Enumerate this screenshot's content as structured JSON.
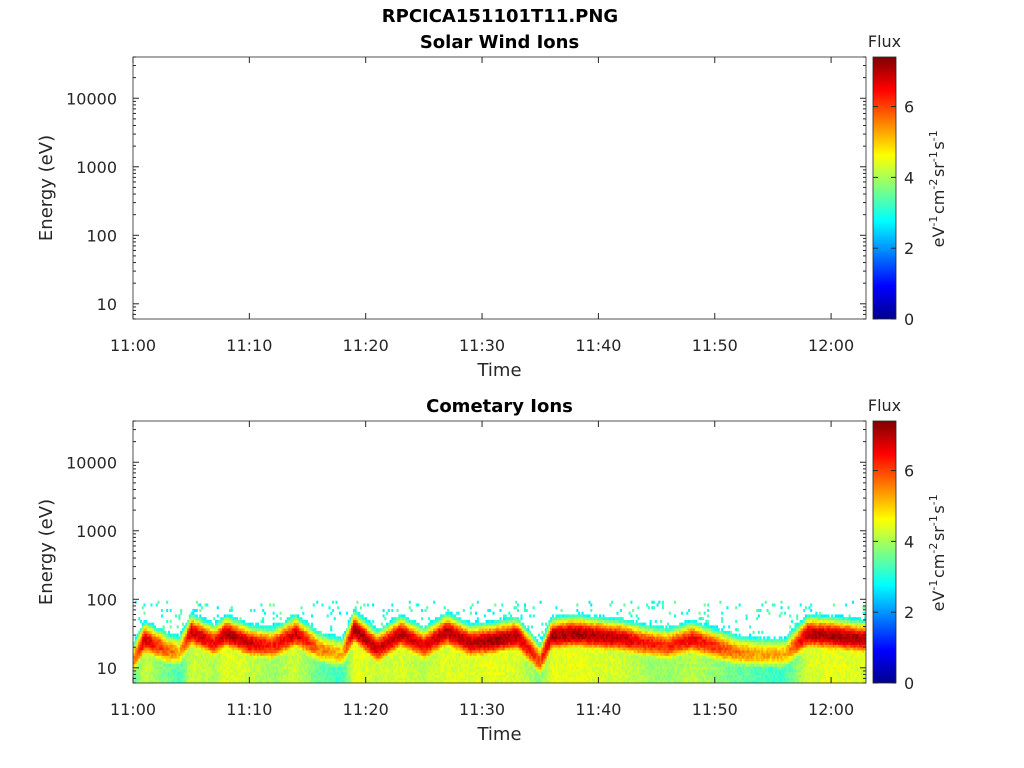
{
  "figure": {
    "title": "RPCICA151101T11.PNG"
  },
  "colors": {
    "axes": "#262626",
    "background": "#ffffff",
    "colormap": [
      "#00008f",
      "#0000ff",
      "#0080ff",
      "#00ffff",
      "#80ff80",
      "#ffff00",
      "#ff8000",
      "#ff0000",
      "#800000"
    ]
  },
  "chart_data": [
    {
      "type": "heatmap",
      "title": "Solar Wind Ions",
      "xlabel": "Time",
      "ylabel": "Energy (eV)",
      "y_scale": "log",
      "xlim": [
        "11:00",
        "12:03"
      ],
      "ylim": [
        6,
        40000
      ],
      "xticks": [
        "11:00",
        "11:10",
        "11:20",
        "11:30",
        "11:40",
        "11:50",
        "12:00"
      ],
      "yticks": [
        "10",
        "100",
        "1000",
        "10000"
      ],
      "grid": false,
      "colorbar": {
        "label": "Flux",
        "unit": "eV-1cm-2sr-1s-1",
        "range": [
          0,
          7.4
        ],
        "ticks": [
          "0",
          "2",
          "4",
          "6"
        ]
      },
      "band": []
    },
    {
      "type": "heatmap",
      "title": "Cometary Ions",
      "xlabel": "Time",
      "ylabel": "Energy (eV)",
      "y_scale": "log",
      "xlim": [
        "11:00",
        "12:03"
      ],
      "ylim": [
        6,
        40000
      ],
      "xticks": [
        "11:00",
        "11:10",
        "11:20",
        "11:30",
        "11:40",
        "11:50",
        "12:00"
      ],
      "yticks": [
        "10",
        "100",
        "1000",
        "10000"
      ],
      "grid": false,
      "colorbar": {
        "label": "Flux",
        "unit": "eV-1cm-2sr-1s-1",
        "range": [
          0,
          7.4
        ],
        "ticks": [
          "0",
          "2",
          "4",
          "6"
        ]
      },
      "band": [
        {
          "time": "11:00",
          "peak_eV": 12,
          "max_flux": 5.5
        },
        {
          "time": "11:01",
          "peak_eV": 25,
          "max_flux": 6.8
        },
        {
          "time": "11:03",
          "peak_eV": 17,
          "max_flux": 5.8
        },
        {
          "time": "11:04",
          "peak_eV": 16,
          "max_flux": 5.2
        },
        {
          "time": "11:05",
          "peak_eV": 32,
          "max_flux": 6.9
        },
        {
          "time": "11:07",
          "peak_eV": 22,
          "max_flux": 6.5
        },
        {
          "time": "11:08",
          "peak_eV": 30,
          "max_flux": 7.1
        },
        {
          "time": "11:10",
          "peak_eV": 22,
          "max_flux": 6.8
        },
        {
          "time": "11:12",
          "peak_eV": 20,
          "max_flux": 6.3
        },
        {
          "time": "11:14",
          "peak_eV": 30,
          "max_flux": 6.9
        },
        {
          "time": "11:16",
          "peak_eV": 18,
          "max_flux": 5.6
        },
        {
          "time": "11:18",
          "peak_eV": 15,
          "max_flux": 5.2
        },
        {
          "time": "11:19",
          "peak_eV": 35,
          "max_flux": 7.2
        },
        {
          "time": "11:21",
          "peak_eV": 18,
          "max_flux": 6.8
        },
        {
          "time": "11:23",
          "peak_eV": 30,
          "max_flux": 7.0
        },
        {
          "time": "11:25",
          "peak_eV": 20,
          "max_flux": 6.6
        },
        {
          "time": "11:27",
          "peak_eV": 32,
          "max_flux": 7.1
        },
        {
          "time": "11:29",
          "peak_eV": 22,
          "max_flux": 7.0
        },
        {
          "time": "11:31",
          "peak_eV": 24,
          "max_flux": 7.2
        },
        {
          "time": "11:33",
          "peak_eV": 28,
          "max_flux": 7.0
        },
        {
          "time": "11:35",
          "peak_eV": 12,
          "max_flux": 6.0
        },
        {
          "time": "11:36",
          "peak_eV": 28,
          "max_flux": 7.1
        },
        {
          "time": "11:38",
          "peak_eV": 30,
          "max_flux": 7.2
        },
        {
          "time": "11:40",
          "peak_eV": 28,
          "max_flux": 7.0
        },
        {
          "time": "11:42",
          "peak_eV": 26,
          "max_flux": 6.9
        },
        {
          "time": "11:44",
          "peak_eV": 22,
          "max_flux": 6.4
        },
        {
          "time": "11:46",
          "peak_eV": 20,
          "max_flux": 6.2
        },
        {
          "time": "11:48",
          "peak_eV": 25,
          "max_flux": 6.6
        },
        {
          "time": "11:50",
          "peak_eV": 20,
          "max_flux": 6.2
        },
        {
          "time": "11:52",
          "peak_eV": 16,
          "max_flux": 5.6
        },
        {
          "time": "11:54",
          "peak_eV": 15,
          "max_flux": 5.3
        },
        {
          "time": "11:56",
          "peak_eV": 15,
          "max_flux": 5.2
        },
        {
          "time": "11:58",
          "peak_eV": 30,
          "max_flux": 7.0
        },
        {
          "time": "12:00",
          "peak_eV": 28,
          "max_flux": 7.2
        },
        {
          "time": "12:03",
          "peak_eV": 25,
          "max_flux": 7.0
        }
      ]
    }
  ]
}
